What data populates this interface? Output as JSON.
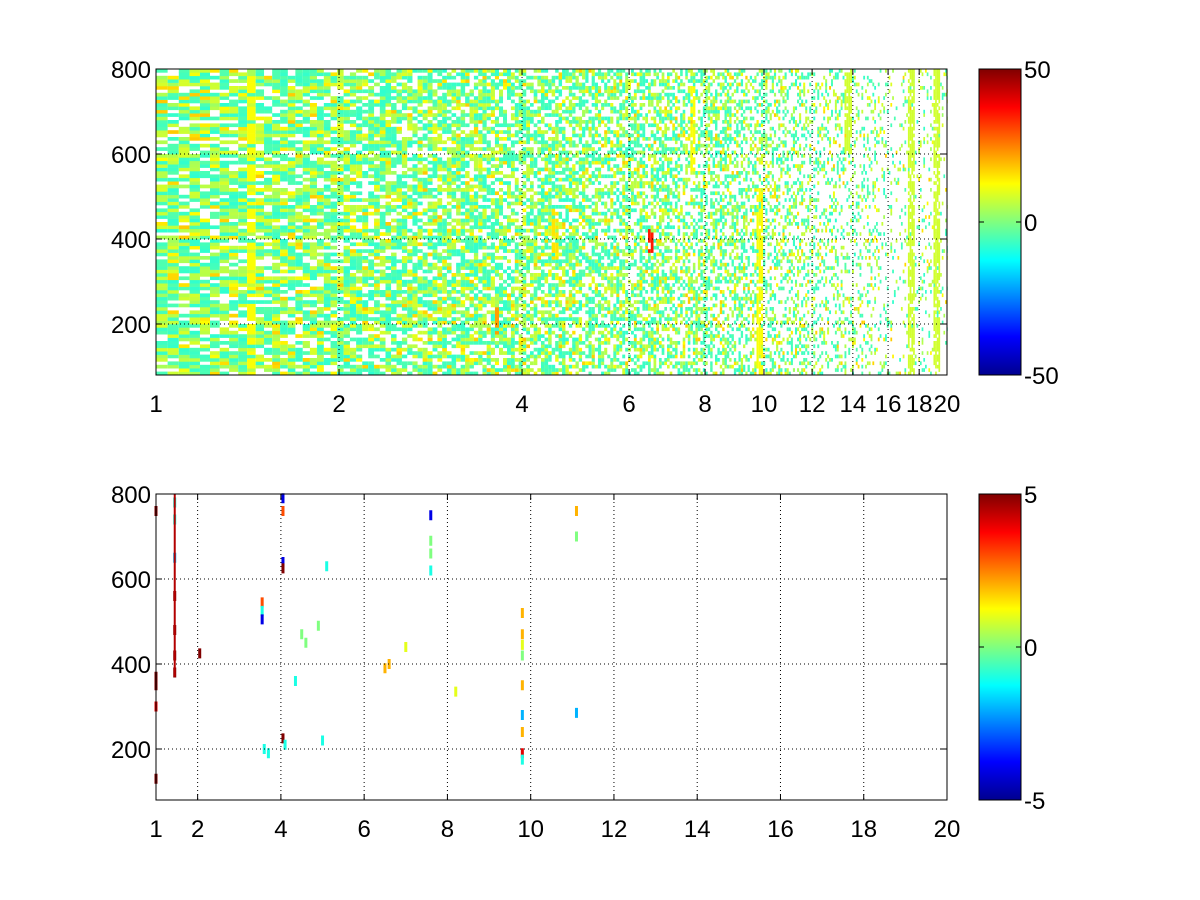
{
  "chart_data": [
    {
      "type": "heatmap",
      "title": "",
      "xlabel": "",
      "ylabel": "",
      "xlim": [
        1,
        20
      ],
      "ylim": [
        80,
        800
      ],
      "x_scale": "log",
      "x_ticks": [
        1,
        2,
        4,
        6,
        8,
        10,
        12,
        14,
        16,
        18,
        20
      ],
      "x_tick_labels": [
        "1",
        "2",
        "4",
        "6",
        "8",
        "10",
        "12",
        "14",
        "16",
        "18",
        "20"
      ],
      "y_ticks": [
        200,
        400,
        600,
        800
      ],
      "y_tick_labels": [
        "200",
        "400",
        "600",
        "800"
      ],
      "grid": true,
      "colormap": "jet",
      "color_range": [
        -50,
        50
      ],
      "colorbar_ticks": [
        50,
        0,
        -50
      ],
      "colorbar_tick_labels": [
        "50",
        "0",
        "-50"
      ],
      "notes_empty_cells": "white",
      "features": [
        {
          "x": 1.4,
          "y_range": [
            80,
            800
          ],
          "value": 12
        },
        {
          "x": 3.6,
          "y_range": [
            180,
            240
          ],
          "value": 22
        },
        {
          "x": 4.5,
          "y_range": [
            350,
            470
          ],
          "value": 15
        },
        {
          "x": 6.5,
          "y_range": [
            370,
            420
          ],
          "value": 35
        },
        {
          "x": 7.6,
          "y_range": [
            560,
            760
          ],
          "value": 12
        },
        {
          "x": 9.8,
          "y_range": [
            80,
            520
          ],
          "value": 12
        },
        {
          "x": 13.7,
          "y_range": [
            600,
            800
          ],
          "value": 8
        },
        {
          "x": 17.4,
          "y_range": [
            80,
            800
          ],
          "value": 8
        },
        {
          "x": 19.2,
          "y_range": [
            80,
            800
          ],
          "value": 8
        }
      ]
    },
    {
      "type": "heatmap",
      "title": "",
      "xlabel": "",
      "ylabel": "",
      "xlim": [
        1,
        20
      ],
      "ylim": [
        80,
        800
      ],
      "x_scale": "linear",
      "x_ticks": [
        1,
        2,
        4,
        6,
        8,
        10,
        12,
        14,
        16,
        18,
        20
      ],
      "x_tick_labels": [
        "1",
        "2",
        "4",
        "6",
        "8",
        "10",
        "12",
        "14",
        "16",
        "18",
        "20"
      ],
      "y_ticks": [
        200,
        400,
        600,
        800
      ],
      "y_tick_labels": [
        "200",
        "400",
        "600",
        "800"
      ],
      "grid": true,
      "colormap": "jet",
      "color_range": [
        -5,
        5
      ],
      "colorbar_ticks": [
        5,
        0,
        -5
      ],
      "colorbar_tick_labels": [
        "5",
        "0",
        "-5"
      ],
      "points": [
        {
          "x": 1.0,
          "y": 760,
          "value": 5
        },
        {
          "x": 1.0,
          "y": 370,
          "value": 5
        },
        {
          "x": 1.0,
          "y": 350,
          "value": 5
        },
        {
          "x": 1.0,
          "y": 300,
          "value": 4
        },
        {
          "x": 1.0,
          "y": 130,
          "value": 5
        },
        {
          "x": 1.45,
          "y": 780,
          "value": -1
        },
        {
          "x": 1.45,
          "y": 740,
          "value": -1
        },
        {
          "x": 1.45,
          "y": 650,
          "value": -2
        },
        {
          "x": 1.45,
          "y": 560,
          "value": 5
        },
        {
          "x": 1.45,
          "y": 480,
          "value": 5
        },
        {
          "x": 1.45,
          "y": 420,
          "value": 5
        },
        {
          "x": 1.45,
          "y": 380,
          "value": 5
        },
        {
          "x": 2.05,
          "y": 425,
          "value": 5
        },
        {
          "x": 3.55,
          "y": 545,
          "value": 3
        },
        {
          "x": 3.55,
          "y": 525,
          "value": -1
        },
        {
          "x": 3.55,
          "y": 505,
          "value": -4
        },
        {
          "x": 3.6,
          "y": 200,
          "value": -1
        },
        {
          "x": 3.7,
          "y": 190,
          "value": -1
        },
        {
          "x": 4.05,
          "y": 790,
          "value": -4
        },
        {
          "x": 4.05,
          "y": 760,
          "value": 3
        },
        {
          "x": 4.05,
          "y": 640,
          "value": -4
        },
        {
          "x": 4.05,
          "y": 625,
          "value": 5
        },
        {
          "x": 4.05,
          "y": 225,
          "value": 5
        },
        {
          "x": 4.1,
          "y": 210,
          "value": -1
        },
        {
          "x": 4.35,
          "y": 360,
          "value": -1
        },
        {
          "x": 4.5,
          "y": 470,
          "value": 0
        },
        {
          "x": 4.6,
          "y": 450,
          "value": 0
        },
        {
          "x": 4.9,
          "y": 490,
          "value": 0
        },
        {
          "x": 5.1,
          "y": 630,
          "value": -1
        },
        {
          "x": 5.0,
          "y": 220,
          "value": -1
        },
        {
          "x": 6.5,
          "y": 390,
          "value": 2
        },
        {
          "x": 6.6,
          "y": 400,
          "value": 2
        },
        {
          "x": 7.0,
          "y": 440,
          "value": 1
        },
        {
          "x": 7.6,
          "y": 750,
          "value": -4
        },
        {
          "x": 7.6,
          "y": 690,
          "value": 0
        },
        {
          "x": 7.6,
          "y": 660,
          "value": 0
        },
        {
          "x": 7.6,
          "y": 620,
          "value": -1
        },
        {
          "x": 8.2,
          "y": 335,
          "value": 1
        },
        {
          "x": 9.8,
          "y": 520,
          "value": 2
        },
        {
          "x": 9.8,
          "y": 470,
          "value": 2
        },
        {
          "x": 9.8,
          "y": 445,
          "value": 1
        },
        {
          "x": 9.8,
          "y": 420,
          "value": 0
        },
        {
          "x": 9.8,
          "y": 350,
          "value": 2
        },
        {
          "x": 9.8,
          "y": 280,
          "value": -2
        },
        {
          "x": 9.8,
          "y": 240,
          "value": 2
        },
        {
          "x": 9.8,
          "y": 190,
          "value": 4
        },
        {
          "x": 9.8,
          "y": 175,
          "value": -1
        },
        {
          "x": 11.1,
          "y": 760,
          "value": 2
        },
        {
          "x": 11.1,
          "y": 700,
          "value": 0
        },
        {
          "x": 11.1,
          "y": 285,
          "value": -2
        }
      ]
    }
  ]
}
